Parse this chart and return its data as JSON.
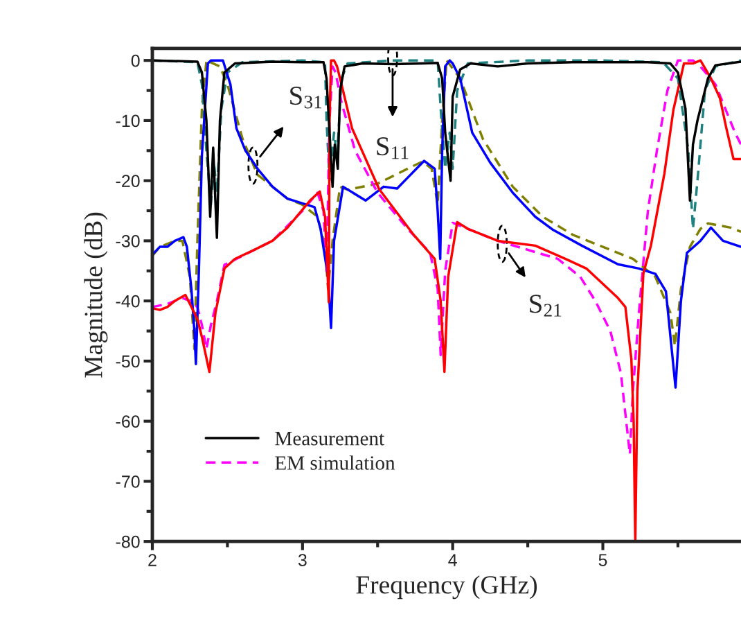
{
  "chart_data": {
    "type": "line",
    "xlabel": "Frequency (GHz)",
    "ylabel": "Magnitude (dB)",
    "xlim": [
      2,
      5.92
    ],
    "ylim": [
      -80,
      2
    ],
    "xticks": [
      2,
      {
        "value": 2.5,
        "label": null
      },
      3,
      {
        "value": 3.5,
        "label": null
      },
      4,
      {
        "value": 4.5,
        "label": null
      },
      5,
      {
        "value": 5.5,
        "label": null
      }
    ],
    "yticks": [
      -80,
      {
        "value": -75,
        "label": null
      },
      -70,
      {
        "value": -65,
        "label": null
      },
      -60,
      {
        "value": -55,
        "label": null
      },
      -50,
      {
        "value": -45,
        "label": null
      },
      -40,
      {
        "value": -35,
        "label": null
      },
      -30,
      {
        "value": -25,
        "label": null
      },
      -20,
      {
        "value": -15,
        "label": null
      },
      -10,
      {
        "value": -5,
        "label": null
      },
      0
    ],
    "legend": "bottom left",
    "annotations": [
      {
        "text": "S$_{31}$",
        "x": 2.67,
        "y": -17.5
      },
      {
        "text": "S$_{11}$",
        "x": 3.6,
        "y": 0.5
      },
      {
        "text": "S$_{21}$",
        "x": 4.33,
        "y": -30.5
      }
    ],
    "series": [
      {
        "color": "#808000",
        "line_style": "dashed",
        "x": [
          2.0,
          2.05,
          2.1,
          2.15,
          2.2,
          2.25,
          2.28,
          2.3,
          2.33,
          2.36,
          2.45,
          2.5,
          2.6,
          2.7,
          2.8,
          2.9,
          3.0,
          3.1,
          3.15,
          3.17,
          3.2,
          3.25,
          3.3,
          3.5,
          3.7,
          3.8,
          3.86,
          3.9,
          3.93,
          3.96,
          4.05,
          4.2,
          4.4,
          4.6,
          4.8,
          5.0,
          5.2,
          5.35,
          5.45,
          5.48,
          5.52,
          5.58,
          5.65,
          5.7,
          5.85,
          5.92
        ],
        "values": [
          -32.5,
          -31,
          -30.5,
          -30,
          -30,
          -36,
          -48,
          -30,
          -8,
          0,
          -1,
          -4,
          -13,
          -19,
          -21,
          -23,
          -24,
          -26,
          -31,
          -38,
          -30,
          -21,
          -21.5,
          -20.5,
          -18,
          -16.8,
          -18,
          -24,
          -10,
          0,
          -3,
          -13,
          -21,
          -26,
          -29,
          -31,
          -33,
          -36,
          -42,
          -47.5,
          -38,
          -31,
          -28,
          -27.1,
          -27.8,
          -28.5
        ]
      },
      {
        "color": "#1f8080",
        "line_style": "dashed",
        "x": [
          2.0,
          2.3,
          2.33,
          2.36,
          2.39,
          2.41,
          2.43,
          2.46,
          2.5,
          2.6,
          3.0,
          3.15,
          3.16,
          3.18,
          3.21,
          3.23,
          3.26,
          3.3,
          3.6,
          3.9,
          3.92,
          3.95,
          3.98,
          4.0,
          4.03,
          4.1,
          4.5,
          5.0,
          5.4,
          5.5,
          5.57,
          5.6,
          5.63,
          5.68,
          5.75,
          5.92
        ],
        "values": [
          0,
          -0.3,
          -4,
          -15,
          -24,
          -17,
          -22,
          -8,
          -2,
          -0.3,
          0,
          -0.3,
          -10,
          -20,
          -12,
          -16,
          -3,
          -0.5,
          0,
          0,
          -8,
          -18,
          -12,
          -18,
          -5,
          -0.5,
          0,
          0,
          -0.3,
          -3,
          -15,
          -28,
          -20,
          -5,
          -1,
          0
        ]
      },
      {
        "color": "#ff00ff",
        "line_style": "dashed",
        "name": "EM simulation",
        "x": [
          2.0,
          2.1,
          2.2,
          2.25,
          2.3,
          2.33,
          2.36,
          2.39,
          2.43,
          2.48,
          2.6,
          2.8,
          3.0,
          3.1,
          3.14,
          3.16,
          3.18,
          3.2,
          3.22,
          3.26,
          3.35,
          3.5,
          3.7,
          3.85,
          3.9,
          3.92,
          3.95,
          4.0,
          4.1,
          4.3,
          4.5,
          4.7,
          4.85,
          4.95,
          5.05,
          5.12,
          5.18,
          5.2,
          5.24,
          5.3,
          5.36,
          5.43,
          5.5,
          5.6,
          5.65,
          5.75,
          5.88,
          5.92
        ],
        "values": [
          -41,
          -40.5,
          -39.5,
          -40,
          -41,
          -44,
          -48,
          -44,
          -40,
          -34,
          -32.5,
          -30,
          -25,
          -22,
          -25,
          -35,
          -10,
          -1,
          -2,
          -7,
          -15,
          -22,
          -28,
          -32,
          -38,
          -49,
          -35,
          -27,
          -28,
          -30,
          -31.5,
          -33,
          -36,
          -40,
          -45,
          -52,
          -65.5,
          -55,
          -42,
          -25,
          -15,
          -5,
          0,
          0,
          -1,
          -4,
          -12,
          -14
        ]
      },
      {
        "color": "#0000ff",
        "x": [
          2.0,
          2.05,
          2.1,
          2.15,
          2.207,
          2.23,
          2.26,
          2.28,
          2.29,
          2.31,
          2.33,
          2.37,
          2.39,
          2.47,
          2.52,
          2.56,
          2.62,
          2.7,
          2.8,
          2.9,
          3.08,
          3.12,
          3.17,
          3.19,
          3.21,
          3.27,
          3.42,
          3.54,
          3.63,
          3.7,
          3.81,
          3.88,
          3.9,
          3.917,
          3.93,
          3.95,
          3.98,
          4.0,
          4.05,
          4.13,
          4.25,
          4.4,
          4.55,
          4.67,
          4.86,
          5.1,
          5.24,
          5.35,
          5.42,
          5.484,
          5.52,
          5.56,
          5.65,
          5.72,
          5.8,
          5.92
        ],
        "values": [
          -32.3,
          -31,
          -31,
          -30,
          -29.4,
          -31,
          -38,
          -45,
          -50.5,
          -35,
          -15.8,
          -0.5,
          0,
          0,
          -4,
          -11.3,
          -15,
          -18,
          -21,
          -23,
          -24.4,
          -28,
          -36,
          -44.5,
          -30,
          -21,
          -23.3,
          -21,
          -21.3,
          -19.5,
          -16.7,
          -18,
          -25,
          -33,
          -15,
          -1,
          0,
          -0.5,
          -3,
          -12,
          -17,
          -22,
          -26,
          -28.2,
          -30.8,
          -33.9,
          -34.6,
          -35.5,
          -38.4,
          -54.4,
          -40,
          -32,
          -30,
          -27.8,
          -30,
          -31
        ]
      },
      {
        "color": "#ff0000",
        "x": [
          2.0,
          2.05,
          2.1,
          2.15,
          2.22,
          2.26,
          2.3,
          2.33,
          2.38,
          2.42,
          2.48,
          2.55,
          2.67,
          2.8,
          2.9,
          3.05,
          3.115,
          3.15,
          3.175,
          3.18,
          3.19,
          3.21,
          3.23,
          3.26,
          3.33,
          3.51,
          3.74,
          3.88,
          3.92,
          3.945,
          3.97,
          4.03,
          4.1,
          4.3,
          4.55,
          4.75,
          4.89,
          5.1,
          5.15,
          5.19,
          5.205,
          5.216,
          5.23,
          5.27,
          5.32,
          5.41,
          5.47,
          5.54,
          5.6,
          5.65,
          5.72,
          5.78,
          5.82,
          5.87,
          5.92
        ],
        "values": [
          -41.2,
          -41.5,
          -41,
          -40,
          -39,
          -41,
          -43,
          -46,
          -51.8,
          -42,
          -34.6,
          -33,
          -31.6,
          -30,
          -27.8,
          -23.3,
          -21.8,
          -26,
          -40.2,
          -10,
          0,
          0,
          -1,
          -4,
          -11.3,
          -21.4,
          -29,
          -33,
          -40,
          -51.8,
          -36,
          -26.9,
          -28,
          -30,
          -30.8,
          -33,
          -34.6,
          -39.5,
          -41,
          -49.7,
          -60,
          -80,
          -55,
          -35.4,
          -30.8,
          -18.8,
          -8.2,
          -0.5,
          -0.5,
          0,
          -3,
          -6.3,
          -11,
          -16.4,
          -16.4
        ]
      },
      {
        "color": "#000000",
        "name": "Measurement",
        "x": [
          2.0,
          2.3,
          2.33,
          2.36,
          2.385,
          2.405,
          2.43,
          2.45,
          2.48,
          2.55,
          2.8,
          3.0,
          3.14,
          3.16,
          3.18,
          3.2,
          3.215,
          3.235,
          3.25,
          3.28,
          3.4,
          3.6,
          3.8,
          3.9,
          3.93,
          3.95,
          3.986,
          4.0,
          4.05,
          4.12,
          4.3,
          4.5,
          4.8,
          5.0,
          5.3,
          5.45,
          5.5,
          5.55,
          5.58,
          5.6,
          5.63,
          5.7,
          5.75,
          5.92
        ],
        "values": [
          0,
          -0.2,
          -2,
          -10,
          -26,
          -14.5,
          -29.5,
          -10,
          -2,
          -0.5,
          -0.2,
          -0.3,
          -0.3,
          -3,
          -12,
          -21,
          -14,
          -18,
          -5,
          -1,
          -0.5,
          -0.6,
          -0.5,
          -0.4,
          -3,
          -12,
          -20,
          -6,
          -1.5,
          -0.5,
          -1,
          -0.5,
          -0.3,
          -0.3,
          -0.3,
          -0.5,
          -2,
          -8,
          -23.3,
          -14,
          -10,
          -3,
          -0.8,
          -0.2
        ]
      }
    ]
  }
}
